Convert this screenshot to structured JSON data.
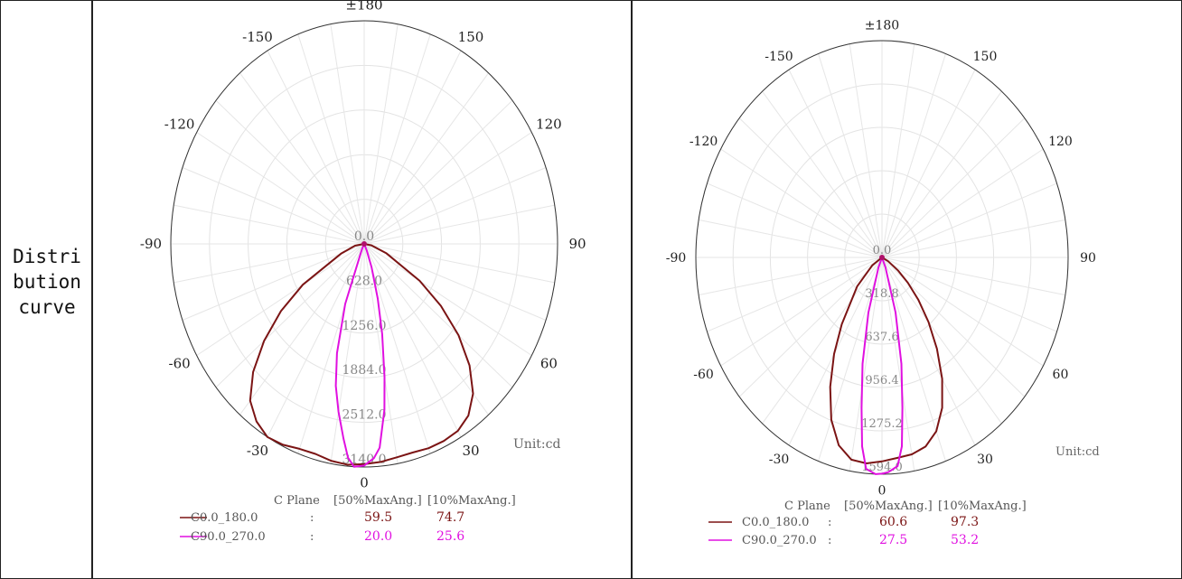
{
  "row_label_lines": [
    "Distri",
    "bution",
    "curve"
  ],
  "chart_data": [
    {
      "type": "polar-line",
      "unit_label": "Unit:cd",
      "angle_labels": [
        "±180",
        "150",
        "120",
        "90",
        "60",
        "30",
        "0",
        "-30",
        "-60",
        "-90",
        "-120",
        "-150"
      ],
      "radial_labels": [
        "0.0",
        "628.0",
        "1256.0",
        "1884.0",
        "2512.0",
        "3140.0"
      ],
      "r_max": 3140,
      "legend_header": [
        "C Plane",
        "[50%MaxAng.]",
        "[10%MaxAng.]"
      ],
      "series": [
        {
          "name": "C0.0_180.0",
          "color": "#7b1414",
          "half_angle_50": "59.5",
          "half_angle_10": "74.7",
          "points": [
            [
              -80,
              150
            ],
            [
              -70,
              400
            ],
            [
              -60,
              1150
            ],
            [
              -55,
              1650
            ],
            [
              -50,
              2120
            ],
            [
              -45,
              2550
            ],
            [
              -40,
              2880
            ],
            [
              -35,
              3050
            ],
            [
              -30,
              3140
            ],
            [
              -25,
              3120
            ],
            [
              -20,
              3070
            ],
            [
              -15,
              3060
            ],
            [
              -10,
              3100
            ],
            [
              -5,
              3120
            ],
            [
              0,
              3100
            ],
            [
              5,
              3080
            ],
            [
              10,
              3050
            ],
            [
              15,
              3040
            ],
            [
              20,
              3060
            ],
            [
              25,
              3060
            ],
            [
              30,
              3040
            ],
            [
              35,
              2950
            ],
            [
              40,
              2750
            ],
            [
              45,
              2420
            ],
            [
              50,
              2000
            ],
            [
              55,
              1520
            ],
            [
              60,
              1040
            ],
            [
              70,
              380
            ],
            [
              80,
              120
            ]
          ]
        },
        {
          "name": "C90.0_270.0",
          "color": "#e010e0",
          "half_angle_50": "20.0",
          "half_angle_10": "25.6",
          "points": [
            [
              -26,
              80
            ],
            [
              -20,
              900
            ],
            [
              -16,
              1600
            ],
            [
              -13,
              2050
            ],
            [
              -10,
              2400
            ],
            [
              -7,
              2760
            ],
            [
              -5,
              3020
            ],
            [
              -3,
              3140
            ],
            [
              0,
              3120
            ],
            [
              3,
              3020
            ],
            [
              5,
              2880
            ],
            [
              8,
              2360
            ],
            [
              10,
              1900
            ],
            [
              13,
              1300
            ],
            [
              16,
              800
            ],
            [
              20,
              350
            ],
            [
              24,
              100
            ]
          ]
        }
      ]
    },
    {
      "type": "polar-line",
      "unit_label": "Unit:cd",
      "angle_labels": [
        "±180",
        "150",
        "120",
        "90",
        "60",
        "30",
        "0",
        "-30",
        "-60",
        "-90",
        "-120",
        "-150"
      ],
      "radial_labels": [
        "0.0",
        "318.8",
        "637.6",
        "956.4",
        "1275.2",
        "1594.0"
      ],
      "r_max": 1594,
      "legend_header": [
        "C Plane",
        "[50%MaxAng.]",
        "[10%MaxAng.]"
      ],
      "series": [
        {
          "name": "C0.0_180.0",
          "color": "#7b1414",
          "half_angle_50": "60.6",
          "half_angle_10": "97.3",
          "points": [
            [
              -55,
              100
            ],
            [
              -45,
              300
            ],
            [
              -35,
              600
            ],
            [
              -30,
              820
            ],
            [
              -25,
              1050
            ],
            [
              -20,
              1270
            ],
            [
              -15,
              1430
            ],
            [
              -10,
              1510
            ],
            [
              -5,
              1520
            ],
            [
              0,
              1500
            ],
            [
              5,
              1480
            ],
            [
              10,
              1470
            ],
            [
              15,
              1440
            ],
            [
              20,
              1360
            ],
            [
              25,
              1220
            ],
            [
              30,
              1030
            ],
            [
              35,
              820
            ],
            [
              40,
              620
            ],
            [
              45,
              440
            ],
            [
              50,
              290
            ],
            [
              55,
              170
            ],
            [
              62,
              60
            ]
          ]
        },
        {
          "name": "C90.0_270.0",
          "color": "#e010e0",
          "half_angle_50": "27.5",
          "half_angle_10": "53.2",
          "points": [
            [
              -22,
              80
            ],
            [
              -16,
              420
            ],
            [
              -12,
              800
            ],
            [
              -9,
              1120
            ],
            [
              -7,
              1400
            ],
            [
              -5,
              1560
            ],
            [
              -2,
              1594
            ],
            [
              0,
              1590
            ],
            [
              2,
              1580
            ],
            [
              5,
              1540
            ],
            [
              7,
              1400
            ],
            [
              9,
              1120
            ],
            [
              12,
              800
            ],
            [
              16,
              420
            ],
            [
              22,
              80
            ]
          ]
        }
      ]
    }
  ]
}
